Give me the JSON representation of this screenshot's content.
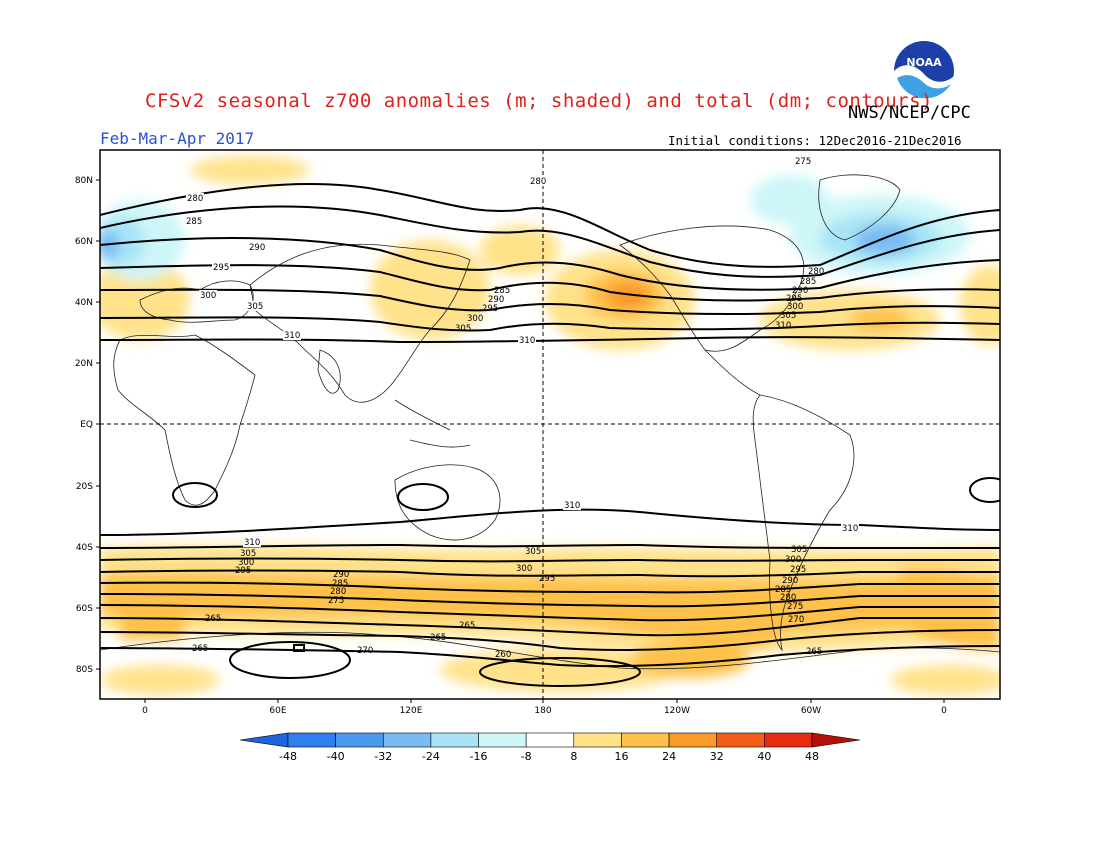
{
  "title": "CFSv2 seasonal z700 anomalies (m; shaded) and total (dm; contours)",
  "agency": "NWS/NCEP/CPC",
  "period": "Feb-Mar-Apr 2017",
  "initial_conditions": "Initial conditions: 12Dec2016-21Dec2016",
  "logo_text": "NOAA",
  "lat_labels": [
    "80N",
    "60N",
    "40N",
    "20N",
    "EQ",
    "20S",
    "40S",
    "60S",
    "80S"
  ],
  "lon_labels": [
    "0",
    "60E",
    "120E",
    "180",
    "120W",
    "60W",
    "0"
  ],
  "colorbar": {
    "labels": [
      "-48",
      "-40",
      "-32",
      "-24",
      "-16",
      "-8",
      "8",
      "16",
      "24",
      "32",
      "40",
      "48"
    ],
    "colors": [
      "#1e64e0",
      "#2f80ee",
      "#4a9aee",
      "#78bcf3",
      "#a8e4f6",
      "#cdf6f8",
      "#ffffff",
      "#ffe28a",
      "#ffc14a",
      "#fb9a2a",
      "#f35d18",
      "#e52b10",
      "#b71008"
    ]
  },
  "contour_labels": {
    "north_left": [
      "280",
      "285",
      "290",
      "295",
      "300",
      "305",
      "310"
    ],
    "north_pacific": [
      "285",
      "290",
      "295",
      "300",
      "305",
      "280",
      "310"
    ],
    "north_atlantic": [
      "275",
      "280",
      "285",
      "290",
      "295",
      "300",
      "305",
      "310"
    ],
    "south_left": [
      "310",
      "305",
      "300",
      "295",
      "290",
      "285",
      "280",
      "275",
      "270",
      "265"
    ],
    "south_pacific": [
      "310",
      "305",
      "300",
      "295",
      "265",
      "260",
      "270",
      "265"
    ],
    "south_atlantic": [
      "310",
      "305",
      "300",
      "295",
      "290",
      "285",
      "280",
      "275",
      "270",
      "265"
    ]
  }
}
